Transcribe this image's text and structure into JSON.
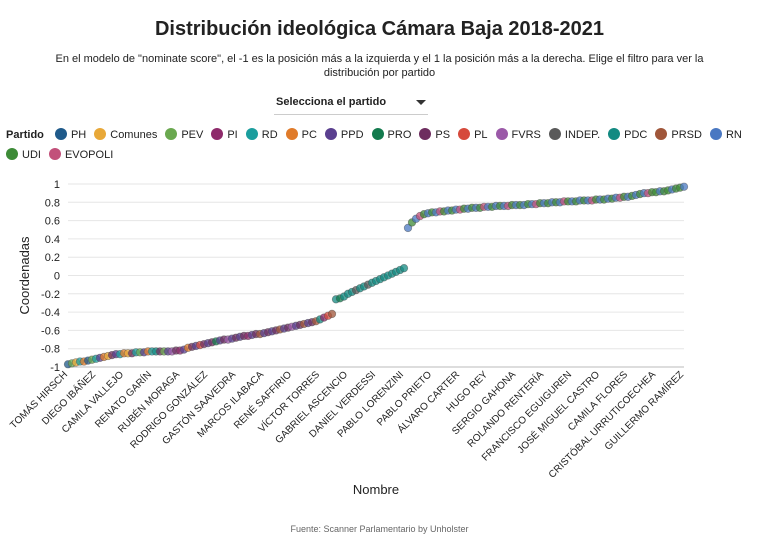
{
  "title": "Distribución ideológica Cámara Baja 2018-2021",
  "subtitle": "En el modelo de \"nominate score\", el -1 es la posición más a la izquierda y el 1 la posición más a la derecha. Elige el filtro para ver la distribución por partido",
  "filter": {
    "label": "Selecciona el partido",
    "icon": "chevron-down-icon"
  },
  "source": "Fuente: Scanner Parlamentario by Unholster",
  "legend": {
    "title": "Partido",
    "items": [
      {
        "label": "PH",
        "color": "#1f5a8a"
      },
      {
        "label": "Comunes",
        "color": "#e8a838"
      },
      {
        "label": "PEV",
        "color": "#6aa84f"
      },
      {
        "label": "PI",
        "color": "#8e2a6b"
      },
      {
        "label": "RD",
        "color": "#1b9e9e"
      },
      {
        "label": "PC",
        "color": "#e07b2a"
      },
      {
        "label": "PPD",
        "color": "#5a3f8f"
      },
      {
        "label": "PRO",
        "color": "#127a4d"
      },
      {
        "label": "PS",
        "color": "#6e2d5f"
      },
      {
        "label": "PL",
        "color": "#d64a3c"
      },
      {
        "label": "FVRS",
        "color": "#9b59a8"
      },
      {
        "label": "INDEP.",
        "color": "#5a5a5a"
      },
      {
        "label": "PDC",
        "color": "#138a82"
      },
      {
        "label": "PRSD",
        "color": "#a0563a"
      },
      {
        "label": "RN",
        "color": "#4a78c2"
      },
      {
        "label": "UDI",
        "color": "#3d8b37"
      },
      {
        "label": "EVOPOLI",
        "color": "#c2507a"
      }
    ]
  },
  "chart_data": {
    "type": "scatter",
    "xlabel": "Nombre",
    "ylabel": "Coordenadas",
    "ylim": [
      -1,
      1
    ],
    "yticks": [
      -1,
      -0.8,
      -0.6,
      -0.4,
      -0.2,
      0,
      0.2,
      0.4,
      0.6,
      0.8,
      1
    ],
    "grid": true,
    "legend_position": "top",
    "x_tick_labels": [
      "TOMÁS HIRSCH",
      "DIEGO IBÁÑEZ",
      "CAMILA VALLEJO",
      "RENATO GARÍN",
      "RUBÉN MORAGA",
      "RODRIGO GONZÁLEZ",
      "GASTÓN SAAVEDRA",
      "MARCOS ILABACA",
      "RENÉ SAFFIRIO",
      "VÍCTOR TORRES",
      "GABRIEL ASCENCIO",
      "DANIEL VERDESSI",
      "PABLO LORENZINI",
      "PABLO PRIETO",
      "ÁLVARO CARTER",
      "HUGO REY",
      "SERGIO GAHONA",
      "ROLANDO RENTERÍA",
      "FRANCISCO EGUIGUREN",
      "JOSÉ MIGUEL CASTRO",
      "CAMILA FLORES",
      "CRISTÓBAL URRUTICOECHEA",
      "GUILLERMO RAMÍREZ"
    ],
    "x_tick_index": [
      0,
      7,
      14,
      21,
      28,
      35,
      42,
      49,
      56,
      63,
      70,
      77,
      84,
      91,
      98,
      105,
      112,
      119,
      126,
      133,
      140,
      147,
      154
    ],
    "series": {
      "count": 155,
      "y": [
        -0.97,
        -0.96,
        -0.95,
        -0.94,
        -0.94,
        -0.93,
        -0.92,
        -0.91,
        -0.9,
        -0.89,
        -0.88,
        -0.87,
        -0.86,
        -0.86,
        -0.85,
        -0.85,
        -0.85,
        -0.84,
        -0.84,
        -0.84,
        -0.83,
        -0.83,
        -0.83,
        -0.83,
        -0.83,
        -0.83,
        -0.83,
        -0.82,
        -0.82,
        -0.81,
        -0.79,
        -0.78,
        -0.77,
        -0.76,
        -0.75,
        -0.74,
        -0.73,
        -0.72,
        -0.71,
        -0.7,
        -0.7,
        -0.69,
        -0.68,
        -0.67,
        -0.66,
        -0.66,
        -0.65,
        -0.64,
        -0.64,
        -0.63,
        -0.62,
        -0.61,
        -0.6,
        -0.59,
        -0.58,
        -0.57,
        -0.56,
        -0.55,
        -0.54,
        -0.53,
        -0.52,
        -0.51,
        -0.5,
        -0.48,
        -0.46,
        -0.44,
        -0.42,
        -0.26,
        -0.25,
        -0.23,
        -0.2,
        -0.18,
        -0.16,
        -0.14,
        -0.12,
        -0.1,
        -0.08,
        -0.06,
        -0.04,
        -0.02,
        0,
        0.02,
        0.04,
        0.06,
        0.08,
        0.52,
        0.58,
        0.62,
        0.65,
        0.67,
        0.68,
        0.69,
        0.69,
        0.7,
        0.7,
        0.71,
        0.71,
        0.72,
        0.72,
        0.73,
        0.73,
        0.74,
        0.74,
        0.74,
        0.75,
        0.75,
        0.75,
        0.76,
        0.76,
        0.76,
        0.76,
        0.77,
        0.77,
        0.77,
        0.77,
        0.78,
        0.78,
        0.78,
        0.79,
        0.79,
        0.79,
        0.8,
        0.8,
        0.8,
        0.81,
        0.81,
        0.81,
        0.81,
        0.82,
        0.82,
        0.82,
        0.82,
        0.83,
        0.83,
        0.83,
        0.84,
        0.84,
        0.85,
        0.85,
        0.86,
        0.86,
        0.87,
        0.88,
        0.89,
        0.9,
        0.9,
        0.91,
        0.91,
        0.92,
        0.92,
        0.93,
        0.94,
        0.95,
        0.96,
        0.97
      ],
      "party": [
        "PH",
        "PEV",
        "Comunes",
        "RD",
        "PC",
        "PH",
        "PEV",
        "RD",
        "PPD",
        "PC",
        "Comunes",
        "PS",
        "PPD",
        "RD",
        "PC",
        "Comunes",
        "PS",
        "RD",
        "PEV",
        "PPD",
        "PC",
        "RD",
        "PDC",
        "PS",
        "PEV",
        "PPD",
        "FVRS",
        "PS",
        "PI",
        "PPD",
        "PC",
        "PS",
        "PPD",
        "PL",
        "PS",
        "PPD",
        "PS",
        "PRO",
        "PPD",
        "PS",
        "FVRS",
        "PPD",
        "PS",
        "PPD",
        "PS",
        "PI",
        "PPD",
        "PS",
        "PRSD",
        "PPD",
        "PS",
        "PPD",
        "PS",
        "PRSD",
        "PPD",
        "PS",
        "FVRS",
        "PPD",
        "PS",
        "PRSD",
        "PPD",
        "PS",
        "PRSD",
        "PDC",
        "PI",
        "PL",
        "PRSD",
        "PDC",
        "PRO",
        "PDC",
        "PDC",
        "PDC",
        "INDEP.",
        "PDC",
        "PDC",
        "INDEP.",
        "PDC",
        "PDC",
        "PDC",
        "PDC",
        "PDC",
        "PDC",
        "PDC",
        "PDC",
        "PDC",
        "RN",
        "UDI",
        "RN",
        "EVOPOLI",
        "UDI",
        "RN",
        "UDI",
        "RN",
        "EVOPOLI",
        "UDI",
        "RN",
        "UDI",
        "RN",
        "EVOPOLI",
        "UDI",
        "RN",
        "UDI",
        "RN",
        "UDI",
        "EVOPOLI",
        "RN",
        "UDI",
        "RN",
        "UDI",
        "RN",
        "EVOPOLI",
        "UDI",
        "RN",
        "UDI",
        "RN",
        "UDI",
        "RN",
        "EVOPOLI",
        "UDI",
        "RN",
        "UDI",
        "RN",
        "UDI",
        "RN",
        "EVOPOLI",
        "UDI",
        "RN",
        "UDI",
        "RN",
        "UDI",
        "RN",
        "EVOPOLI",
        "UDI",
        "RN",
        "UDI",
        "RN",
        "UDI",
        "RN",
        "EVOPOLI",
        "UDI",
        "RN",
        "UDI",
        "RN",
        "UDI",
        "RN",
        "EVOPOLI",
        "UDI",
        "UDI",
        "RN",
        "UDI",
        "UDI",
        "RN",
        "UDI",
        "UDI",
        "RN"
      ]
    }
  }
}
